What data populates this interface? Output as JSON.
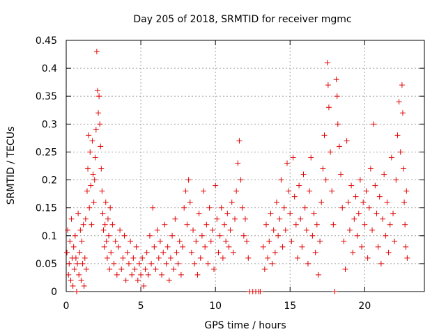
{
  "chart_data": {
    "type": "scatter",
    "title": "Day 205 of 2018, SRMTID for receiver mgmc",
    "xlabel": "GPS time / hours",
    "ylabel": "SRMTID / TECUs",
    "xlim": [
      0,
      24
    ],
    "ylim": [
      0,
      0.45
    ],
    "xticks": [
      0,
      5,
      10,
      15,
      20
    ],
    "xtick_labels": [
      "0",
      "5",
      "10",
      "15",
      "20"
    ],
    "yticks": [
      0,
      0.05,
      0.1,
      0.15,
      0.2,
      0.25,
      0.3,
      0.35,
      0.4,
      0.45
    ],
    "ytick_labels": [
      "0",
      "0.05",
      "0.1",
      "0.15",
      "0.2",
      "0.25",
      "0.3",
      "0.35",
      "0.4",
      "0.45"
    ],
    "grid": true,
    "marker": "+",
    "color": "#e00000",
    "series": [
      {
        "name": "SRMTID",
        "points": [
          [
            0.05,
            0.07
          ],
          [
            0.1,
            0.11
          ],
          [
            0.15,
            0.03
          ],
          [
            0.2,
            0.05
          ],
          [
            0.25,
            0.09
          ],
          [
            0.3,
            0.02
          ],
          [
            0.35,
            0.13
          ],
          [
            0.4,
            0.06
          ],
          [
            0.45,
            0.01
          ],
          [
            0.5,
            0.08
          ],
          [
            0.55,
            0.04
          ],
          [
            0.6,
            0.1
          ],
          [
            0.65,
            0.06
          ],
          [
            0.7,
            0.0
          ],
          [
            0.75,
            0.05
          ],
          [
            0.8,
            0.14
          ],
          [
            0.85,
            0.03
          ],
          [
            0.9,
            0.07
          ],
          [
            0.95,
            0.11
          ],
          [
            1.0,
            0.02
          ],
          [
            1.05,
            0.09
          ],
          [
            1.1,
            0.05
          ],
          [
            1.15,
            0.12
          ],
          [
            1.2,
            0.01
          ],
          [
            1.25,
            0.06
          ],
          [
            1.3,
            0.13
          ],
          [
            1.35,
            0.04
          ],
          [
            1.4,
            0.18
          ],
          [
            1.45,
            0.22
          ],
          [
            1.5,
            0.28
          ],
          [
            1.55,
            0.15
          ],
          [
            1.6,
            0.25
          ],
          [
            1.65,
            0.19
          ],
          [
            1.7,
            0.12
          ],
          [
            1.75,
            0.27
          ],
          [
            1.8,
            0.21
          ],
          [
            1.85,
            0.16
          ],
          [
            1.9,
            0.2
          ],
          [
            1.95,
            0.24
          ],
          [
            2.0,
            0.29
          ],
          [
            2.05,
            0.43
          ],
          [
            2.1,
            0.36
          ],
          [
            2.15,
            0.32
          ],
          [
            2.2,
            0.35
          ],
          [
            2.25,
            0.3
          ],
          [
            2.3,
            0.26
          ],
          [
            2.35,
            0.22
          ],
          [
            2.4,
            0.18
          ],
          [
            2.45,
            0.14
          ],
          [
            2.5,
            0.11
          ],
          [
            2.55,
            0.08
          ],
          [
            2.6,
            0.12
          ],
          [
            2.65,
            0.16
          ],
          [
            2.7,
            0.09
          ],
          [
            2.75,
            0.06
          ],
          [
            2.8,
            0.13
          ],
          [
            2.85,
            0.1
          ],
          [
            2.9,
            0.04
          ],
          [
            2.95,
            0.15
          ],
          [
            3.0,
            0.07
          ],
          [
            3.1,
            0.12
          ],
          [
            3.2,
            0.05
          ],
          [
            3.3,
            0.09
          ],
          [
            3.4,
            0.03
          ],
          [
            3.5,
            0.08
          ],
          [
            3.6,
            0.11
          ],
          [
            3.7,
            0.04
          ],
          [
            3.8,
            0.06
          ],
          [
            3.9,
            0.1
          ],
          [
            4.0,
            0.02
          ],
          [
            4.1,
            0.07
          ],
          [
            4.2,
            0.05
          ],
          [
            4.3,
            0.09
          ],
          [
            4.4,
            0.03
          ],
          [
            4.5,
            0.06
          ],
          [
            4.6,
            0.04
          ],
          [
            4.7,
            0.08
          ],
          [
            4.8,
            0.02
          ],
          [
            4.9,
            0.05
          ],
          [
            5.0,
            0.03
          ],
          [
            5.1,
            0.06
          ],
          [
            5.2,
            0.01
          ],
          [
            5.3,
            0.04
          ],
          [
            5.4,
            0.07
          ],
          [
            5.5,
            0.03
          ],
          [
            5.6,
            0.1
          ],
          [
            5.7,
            0.05
          ],
          [
            5.8,
            0.15
          ],
          [
            5.9,
            0.08
          ],
          [
            6.0,
            0.04
          ],
          [
            6.1,
            0.11
          ],
          [
            6.2,
            0.06
          ],
          [
            6.3,
            0.09
          ],
          [
            6.4,
            0.03
          ],
          [
            6.5,
            0.07
          ],
          [
            6.6,
            0.12
          ],
          [
            6.7,
            0.05
          ],
          [
            6.8,
            0.08
          ],
          [
            6.9,
            0.02
          ],
          [
            7.0,
            0.06
          ],
          [
            7.1,
            0.1
          ],
          [
            7.2,
            0.04
          ],
          [
            7.3,
            0.13
          ],
          [
            7.4,
            0.07
          ],
          [
            7.5,
            0.05
          ],
          [
            7.6,
            0.09
          ],
          [
            7.7,
            0.03
          ],
          [
            7.8,
            0.08
          ],
          [
            7.9,
            0.15
          ],
          [
            8.0,
            0.18
          ],
          [
            8.1,
            0.12
          ],
          [
            8.2,
            0.2
          ],
          [
            8.3,
            0.16
          ],
          [
            8.4,
            0.07
          ],
          [
            8.5,
            0.11
          ],
          [
            8.6,
            0.05
          ],
          [
            8.7,
            0.09
          ],
          [
            8.8,
            0.03
          ],
          [
            8.9,
            0.14
          ],
          [
            9.0,
            0.06
          ],
          [
            9.1,
            0.1
          ],
          [
            9.2,
            0.18
          ],
          [
            9.3,
            0.08
          ],
          [
            9.4,
            0.12
          ],
          [
            9.5,
            0.05
          ],
          [
            9.6,
            0.15
          ],
          [
            9.7,
            0.09
          ],
          [
            9.8,
            0.11
          ],
          [
            9.9,
            0.04
          ],
          [
            10.0,
            0.19
          ],
          [
            10.1,
            0.13
          ],
          [
            10.2,
            0.07
          ],
          [
            10.3,
            0.1
          ],
          [
            10.4,
            0.15
          ],
          [
            10.5,
            0.06
          ],
          [
            10.6,
            0.12
          ],
          [
            10.7,
            0.09
          ],
          [
            10.8,
            0.14
          ],
          [
            10.9,
            0.08
          ],
          [
            11.0,
            0.11
          ],
          [
            11.1,
            0.16
          ],
          [
            11.2,
            0.07
          ],
          [
            11.3,
            0.13
          ],
          [
            11.4,
            0.18
          ],
          [
            11.5,
            0.23
          ],
          [
            11.6,
            0.27
          ],
          [
            11.7,
            0.2
          ],
          [
            11.8,
            0.15
          ],
          [
            11.9,
            0.1
          ],
          [
            12.0,
            0.13
          ],
          [
            12.1,
            0.09
          ],
          [
            12.2,
            0.06
          ],
          [
            12.3,
            0.0
          ],
          [
            12.5,
            0.0
          ],
          [
            12.7,
            0.0
          ],
          [
            12.9,
            0.0
          ],
          [
            13.0,
            0.0
          ],
          [
            13.2,
            0.08
          ],
          [
            13.3,
            0.04
          ],
          [
            13.4,
            0.12
          ],
          [
            13.5,
            0.06
          ],
          [
            13.6,
            0.09
          ],
          [
            13.7,
            0.14
          ],
          [
            13.8,
            0.05
          ],
          [
            13.9,
            0.11
          ],
          [
            14.0,
            0.07
          ],
          [
            14.1,
            0.16
          ],
          [
            14.2,
            0.1
          ],
          [
            14.3,
            0.13
          ],
          [
            14.4,
            0.2
          ],
          [
            14.5,
            0.08
          ],
          [
            14.6,
            0.15
          ],
          [
            14.7,
            0.11
          ],
          [
            14.8,
            0.23
          ],
          [
            14.9,
            0.18
          ],
          [
            15.0,
            0.14
          ],
          [
            15.1,
            0.09
          ],
          [
            15.2,
            0.24
          ],
          [
            15.3,
            0.17
          ],
          [
            15.4,
            0.12
          ],
          [
            15.5,
            0.06
          ],
          [
            15.6,
            0.19
          ],
          [
            15.7,
            0.13
          ],
          [
            15.8,
            0.08
          ],
          [
            15.9,
            0.21
          ],
          [
            16.0,
            0.15
          ],
          [
            16.1,
            0.11
          ],
          [
            16.2,
            0.05
          ],
          [
            16.3,
            0.18
          ],
          [
            16.4,
            0.24
          ],
          [
            16.5,
            0.1
          ],
          [
            16.6,
            0.14
          ],
          [
            16.7,
            0.07
          ],
          [
            16.8,
            0.12
          ],
          [
            16.9,
            0.03
          ],
          [
            17.0,
            0.09
          ],
          [
            17.1,
            0.16
          ],
          [
            17.2,
            0.22
          ],
          [
            17.3,
            0.28
          ],
          [
            17.4,
            0.2
          ],
          [
            17.5,
            0.41
          ],
          [
            17.55,
            0.37
          ],
          [
            17.6,
            0.33
          ],
          [
            17.7,
            0.25
          ],
          [
            17.8,
            0.18
          ],
          [
            17.9,
            0.12
          ],
          [
            18.0,
            0.0
          ],
          [
            18.1,
            0.38
          ],
          [
            18.15,
            0.35
          ],
          [
            18.2,
            0.3
          ],
          [
            18.3,
            0.26
          ],
          [
            18.4,
            0.21
          ],
          [
            18.5,
            0.15
          ],
          [
            18.6,
            0.09
          ],
          [
            18.7,
            0.04
          ],
          [
            18.8,
            0.27
          ],
          [
            18.9,
            0.16
          ],
          [
            19.0,
            0.11
          ],
          [
            19.1,
            0.19
          ],
          [
            19.2,
            0.07
          ],
          [
            19.3,
            0.13
          ],
          [
            19.4,
            0.17
          ],
          [
            19.5,
            0.1
          ],
          [
            19.6,
            0.14
          ],
          [
            19.7,
            0.2
          ],
          [
            19.8,
            0.08
          ],
          [
            19.9,
            0.16
          ],
          [
            20.0,
            0.12
          ],
          [
            20.1,
            0.18
          ],
          [
            20.2,
            0.06
          ],
          [
            20.3,
            0.15
          ],
          [
            20.4,
            0.22
          ],
          [
            20.5,
            0.11
          ],
          [
            20.6,
            0.3
          ],
          [
            20.7,
            0.19
          ],
          [
            20.8,
            0.14
          ],
          [
            20.9,
            0.08
          ],
          [
            21.0,
            0.17
          ],
          [
            21.1,
            0.05
          ],
          [
            21.2,
            0.13
          ],
          [
            21.3,
            0.21
          ],
          [
            21.4,
            0.1
          ],
          [
            21.5,
            0.16
          ],
          [
            21.6,
            0.07
          ],
          [
            21.7,
            0.12
          ],
          [
            21.8,
            0.24
          ],
          [
            21.9,
            0.14
          ],
          [
            22.0,
            0.09
          ],
          [
            22.1,
            0.2
          ],
          [
            22.2,
            0.28
          ],
          [
            22.3,
            0.34
          ],
          [
            22.4,
            0.25
          ],
          [
            22.5,
            0.37
          ],
          [
            22.55,
            0.32
          ],
          [
            22.6,
            0.22
          ],
          [
            22.65,
            0.16
          ],
          [
            22.7,
            0.12
          ],
          [
            22.75,
            0.08
          ],
          [
            22.8,
            0.18
          ],
          [
            22.85,
            0.06
          ]
        ]
      }
    ]
  }
}
